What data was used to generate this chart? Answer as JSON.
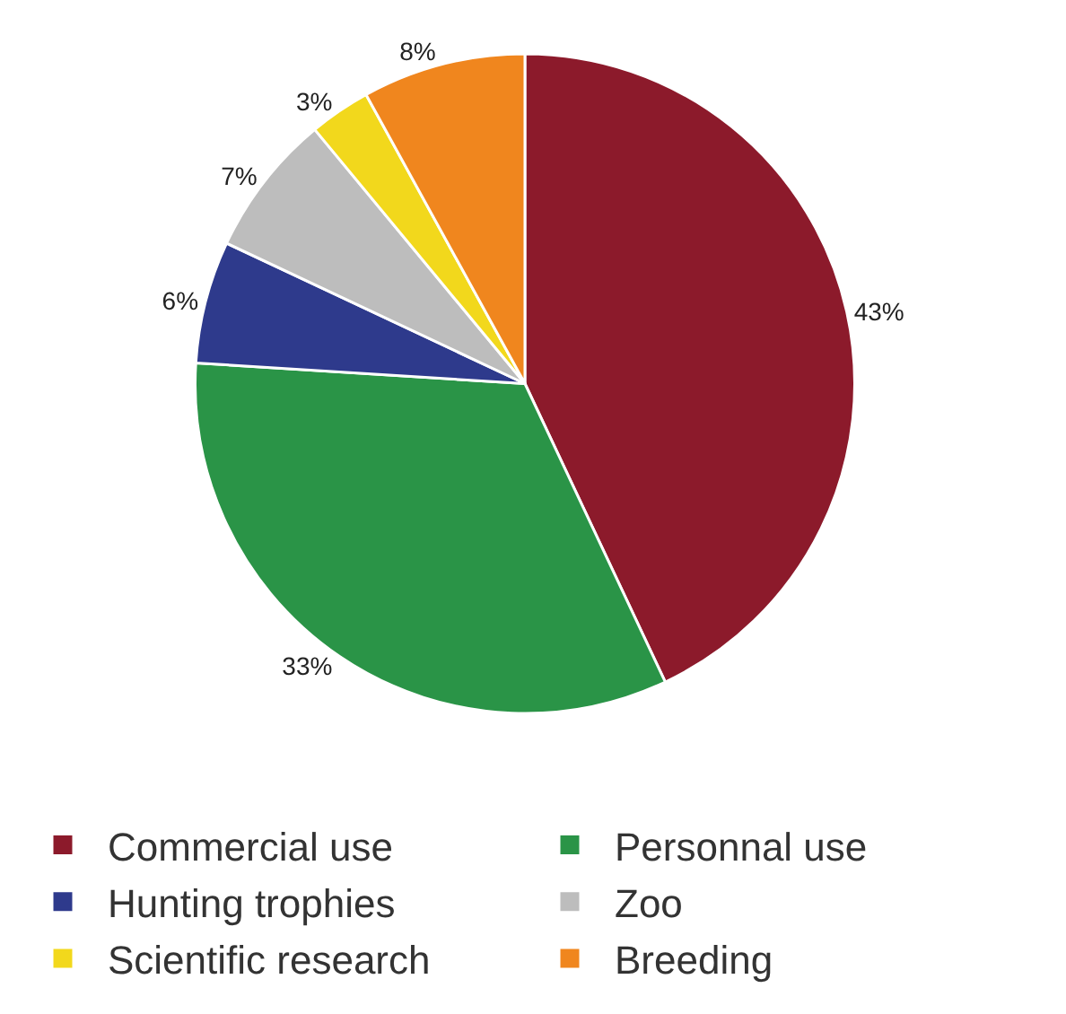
{
  "chart_data": {
    "type": "pie",
    "categories": [
      "Commercial use",
      "Personnal use",
      "Hunting trophies",
      "Zoo",
      "Scientific research",
      "Breeding"
    ],
    "values": [
      43,
      33,
      6,
      7,
      3,
      8
    ],
    "colors": [
      "#8c1a2b",
      "#2a9447",
      "#2e3a8c",
      "#bdbdbd",
      "#f2d81c",
      "#f0861e"
    ],
    "value_labels": [
      "43%",
      "33%",
      "6%",
      "7%",
      "3%",
      "8%"
    ],
    "legend": "bottom"
  }
}
